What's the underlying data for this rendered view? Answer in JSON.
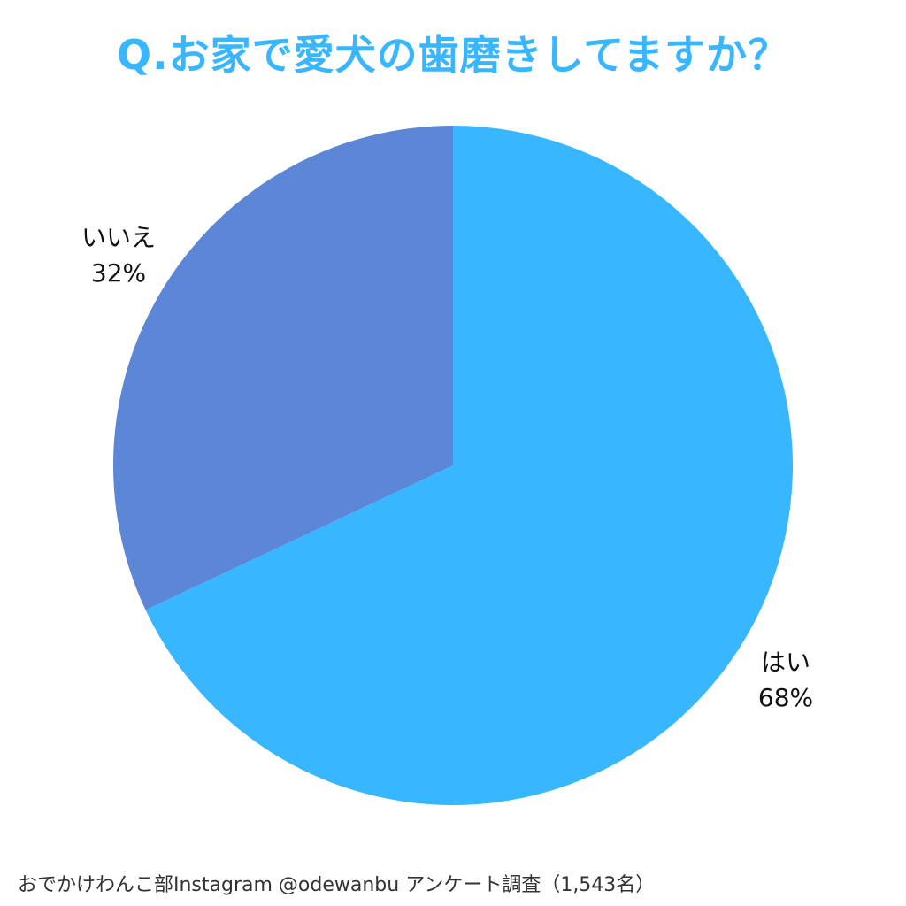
{
  "title": "Q.お家で愛犬の歯磨きしてますか？",
  "footer": "おでかけわんこ部Instagram @odewanbu アンケート調査（1,543名）",
  "colors": {
    "title": "#38b6ff",
    "yes": "#38b6ff",
    "no": "#5b87d6"
  },
  "chart_data": {
    "type": "pie",
    "title": "Q.お家で愛犬の歯磨きしてますか？",
    "slices": [
      {
        "label": "はい",
        "value": 68,
        "display": "68%",
        "color": "#38b6ff"
      },
      {
        "label": "いいえ",
        "value": 32,
        "display": "32%",
        "color": "#5b87d6"
      }
    ],
    "start": "12 o'clock",
    "direction": "clockwise",
    "legend": "none"
  }
}
